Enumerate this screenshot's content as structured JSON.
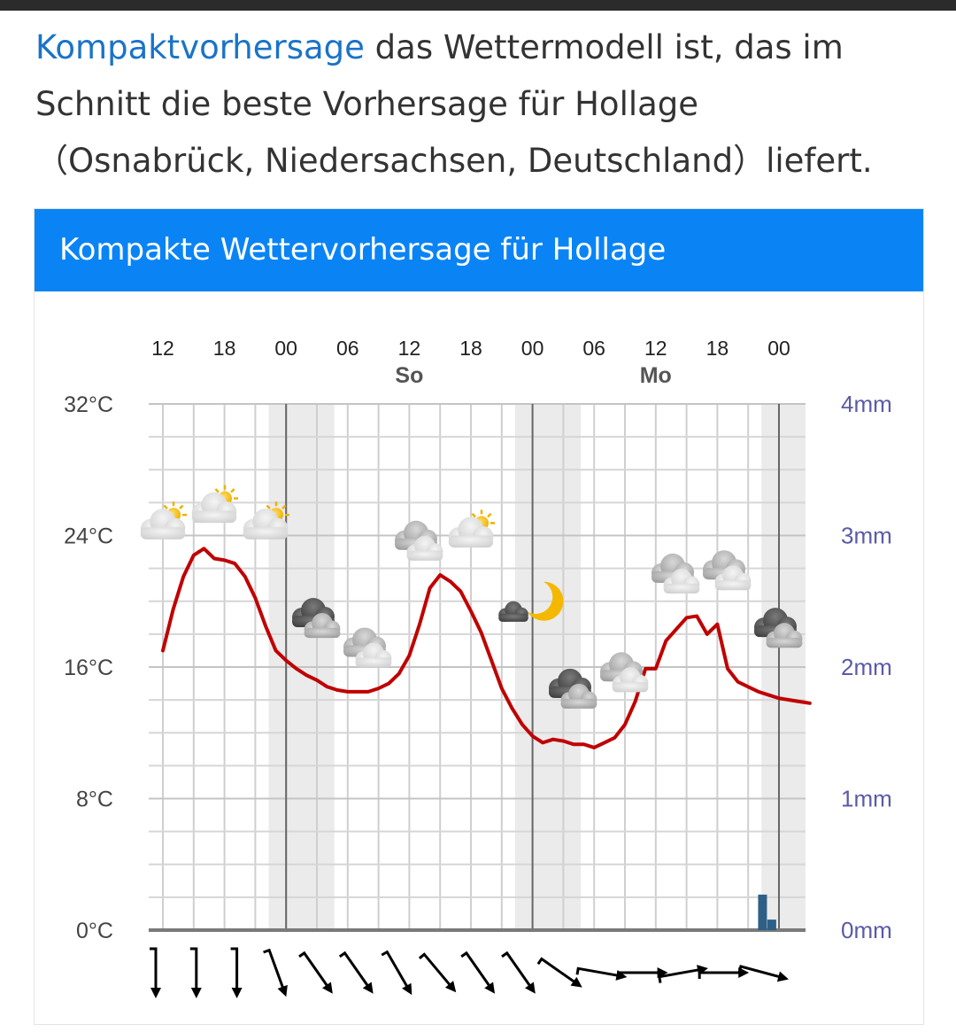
{
  "intro": {
    "link_text": "Kompaktvorhersage",
    "line1_rest": " das Wettermodell ist, das im",
    "line2": "Schnitt die beste Vorhersage für Hollage",
    "line3": "（Osnabrück, Niedersachsen, Deutschland）liefert."
  },
  "card": {
    "title": "Kompakte Wettervorhersage für Hollage"
  },
  "colors": {
    "header_blue": "#0a84f5",
    "link_blue": "#1a73c8",
    "temperature_line": "#c00000",
    "precip_bar": "#2e5f86",
    "precip_axis_text": "#5a5aa8"
  },
  "chart_data": {
    "type": "line",
    "hour_ticks": [
      "12",
      "18",
      "00",
      "06",
      "12",
      "18",
      "00",
      "06",
      "12",
      "18",
      "00"
    ],
    "day_labels": [
      {
        "tick_index": 4,
        "label": "So"
      },
      {
        "tick_index": 8,
        "label": "Mo"
      }
    ],
    "y_left": {
      "unit": "°C",
      "ticks": [
        "0°C",
        "8°C",
        "16°C",
        "24°C",
        "32°C"
      ],
      "ylim": [
        0,
        32
      ]
    },
    "y_right": {
      "unit": "mm",
      "ticks": [
        "0mm",
        "1mm",
        "2mm",
        "3mm",
        "4mm"
      ],
      "ylim": [
        0,
        4
      ]
    },
    "x_range_hours": [
      0,
      63
    ],
    "temperature": {
      "x_hours": [
        0,
        1,
        2,
        3,
        4,
        5,
        6,
        7,
        8,
        9,
        10,
        11,
        12,
        13,
        14,
        15,
        16,
        17,
        18,
        19,
        20,
        21,
        22,
        23,
        24,
        25,
        26,
        27,
        28,
        29,
        30,
        31,
        32,
        33,
        34,
        35,
        36,
        37,
        38,
        39,
        40,
        41,
        42,
        43,
        44,
        45,
        46,
        47,
        48,
        49,
        50,
        51,
        52,
        53,
        54,
        55,
        56,
        57,
        58,
        59,
        60,
        61,
        62,
        63
      ],
      "values": [
        17,
        19.5,
        21.5,
        22.8,
        23.2,
        22.6,
        22.5,
        22.3,
        21.5,
        20.2,
        18.5,
        17,
        16.4,
        15.9,
        15.5,
        15.2,
        14.8,
        14.6,
        14.5,
        14.5,
        14.5,
        14.7,
        15,
        15.6,
        16.7,
        18.6,
        20.8,
        21.6,
        21.2,
        20.6,
        19.4,
        18.1,
        16.4,
        14.7,
        13.5,
        12.5,
        11.8,
        11.4,
        11.6,
        11.5,
        11.3,
        11.3,
        11.1,
        11.4,
        11.7,
        12.5,
        13.9,
        15.9,
        15.9,
        17.6,
        18.3,
        19,
        19.1,
        18,
        18.6,
        15.9,
        15.1,
        14.8,
        14.5,
        14.3,
        14.1,
        14,
        13.9,
        13.8
      ],
      "color": "#c00000"
    },
    "precipitation": [
      {
        "x_hour": 58.4,
        "mm": 0.27
      },
      {
        "x_hour": 59.3,
        "mm": 0.08
      }
    ],
    "night_bands_hours": [
      [
        10,
        17
      ],
      [
        34,
        41
      ],
      [
        58,
        63
      ]
    ],
    "weather_icons": [
      {
        "x_hour": 0,
        "temp": 24.5,
        "icon": "cloudy-sun-icon"
      },
      {
        "x_hour": 5,
        "temp": 25.5,
        "icon": "cloudy-sun-icon"
      },
      {
        "x_hour": 10,
        "temp": 24.5,
        "icon": "cloudy-sun-icon"
      },
      {
        "x_hour": 15,
        "temp": 18.8,
        "icon": "dark-clouds-icon"
      },
      {
        "x_hour": 20,
        "temp": 17,
        "icon": "clouds-icon"
      },
      {
        "x_hour": 25,
        "temp": 23.5,
        "icon": "clouds-icon"
      },
      {
        "x_hour": 30,
        "temp": 24,
        "icon": "cloudy-sun-icon"
      },
      {
        "x_hour": 35,
        "temp": 20,
        "icon": "moon-cloud-icon"
      },
      {
        "x_hour": 40,
        "temp": 14.5,
        "icon": "dark-clouds-icon"
      },
      {
        "x_hour": 45,
        "temp": 15.5,
        "icon": "clouds-icon"
      },
      {
        "x_hour": 50,
        "temp": 21.5,
        "icon": "clouds-icon"
      },
      {
        "x_hour": 55,
        "temp": 21.7,
        "icon": "clouds-icon"
      },
      {
        "x_hour": 60,
        "temp": 18.2,
        "icon": "dark-clouds-icon"
      }
    ],
    "wind_directions_deg": [
      180,
      180,
      180,
      160,
      145,
      145,
      150,
      140,
      145,
      145,
      125,
      100,
      90,
      80,
      90,
      105
    ]
  }
}
